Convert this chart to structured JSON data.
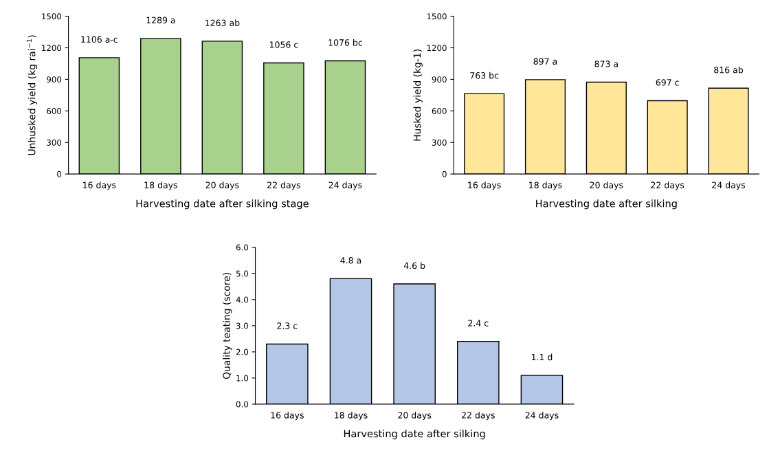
{
  "chart_data": [
    {
      "type": "bar",
      "xlabel": "Harvesting date after silking stage",
      "ylabel": "Unhusked yield (kg rai$^{−1}$)",
      "categories": [
        "16 days",
        "18 days",
        "20 days",
        "22 days",
        "24 days"
      ],
      "values": [
        1106,
        1289,
        1263,
        1056,
        1076
      ],
      "value_labels": [
        "1106 a-c",
        "1289 a",
        "1263 ab",
        "1056 c",
        "1076 bc"
      ],
      "color": "#a9d18e",
      "ylim": [
        0,
        1500
      ],
      "yticks": [
        0,
        300,
        600,
        900,
        1200,
        1500
      ],
      "grid": false,
      "legend": false
    },
    {
      "type": "bar",
      "xlabel": "Harvesting date after silking",
      "ylabel": "Husked yield (kg-1)",
      "categories": [
        "16 days",
        "18 days",
        "20 days",
        "22 days",
        "24 days"
      ],
      "values": [
        763,
        897,
        873,
        697,
        816
      ],
      "value_labels": [
        "763 bc",
        "897 a",
        "873 a",
        "697 c",
        "816 ab"
      ],
      "color": "#ffe699",
      "ylim": [
        0,
        1500
      ],
      "yticks": [
        0,
        300,
        600,
        900,
        1200,
        1500
      ],
      "grid": false,
      "legend": false
    },
    {
      "type": "bar",
      "xlabel": "Harvesting date after silking",
      "ylabel": "Quality teating (score)",
      "categories": [
        "16 days",
        "18 days",
        "20 days",
        "22 days",
        "24 days"
      ],
      "values": [
        2.3,
        4.8,
        4.6,
        2.4,
        1.1
      ],
      "value_labels": [
        "2.3 c",
        "4.8 a",
        "4.6 b",
        "2.4 c",
        "1.1 d"
      ],
      "color": "#b4c7e7",
      "ylim": [
        0,
        6
      ],
      "yticks": [
        {
          "value": 0,
          "label": "0.0"
        },
        {
          "value": 1,
          "label": "1.0"
        },
        {
          "value": 2,
          "label": "2.0"
        },
        {
          "value": 3,
          "label": "3.0"
        },
        {
          "value": 4,
          "label": "4.0"
        },
        {
          "value": 5,
          "label": "5.0"
        },
        {
          "value": 6,
          "label": "6.0"
        }
      ],
      "grid": false,
      "legend": false
    }
  ]
}
